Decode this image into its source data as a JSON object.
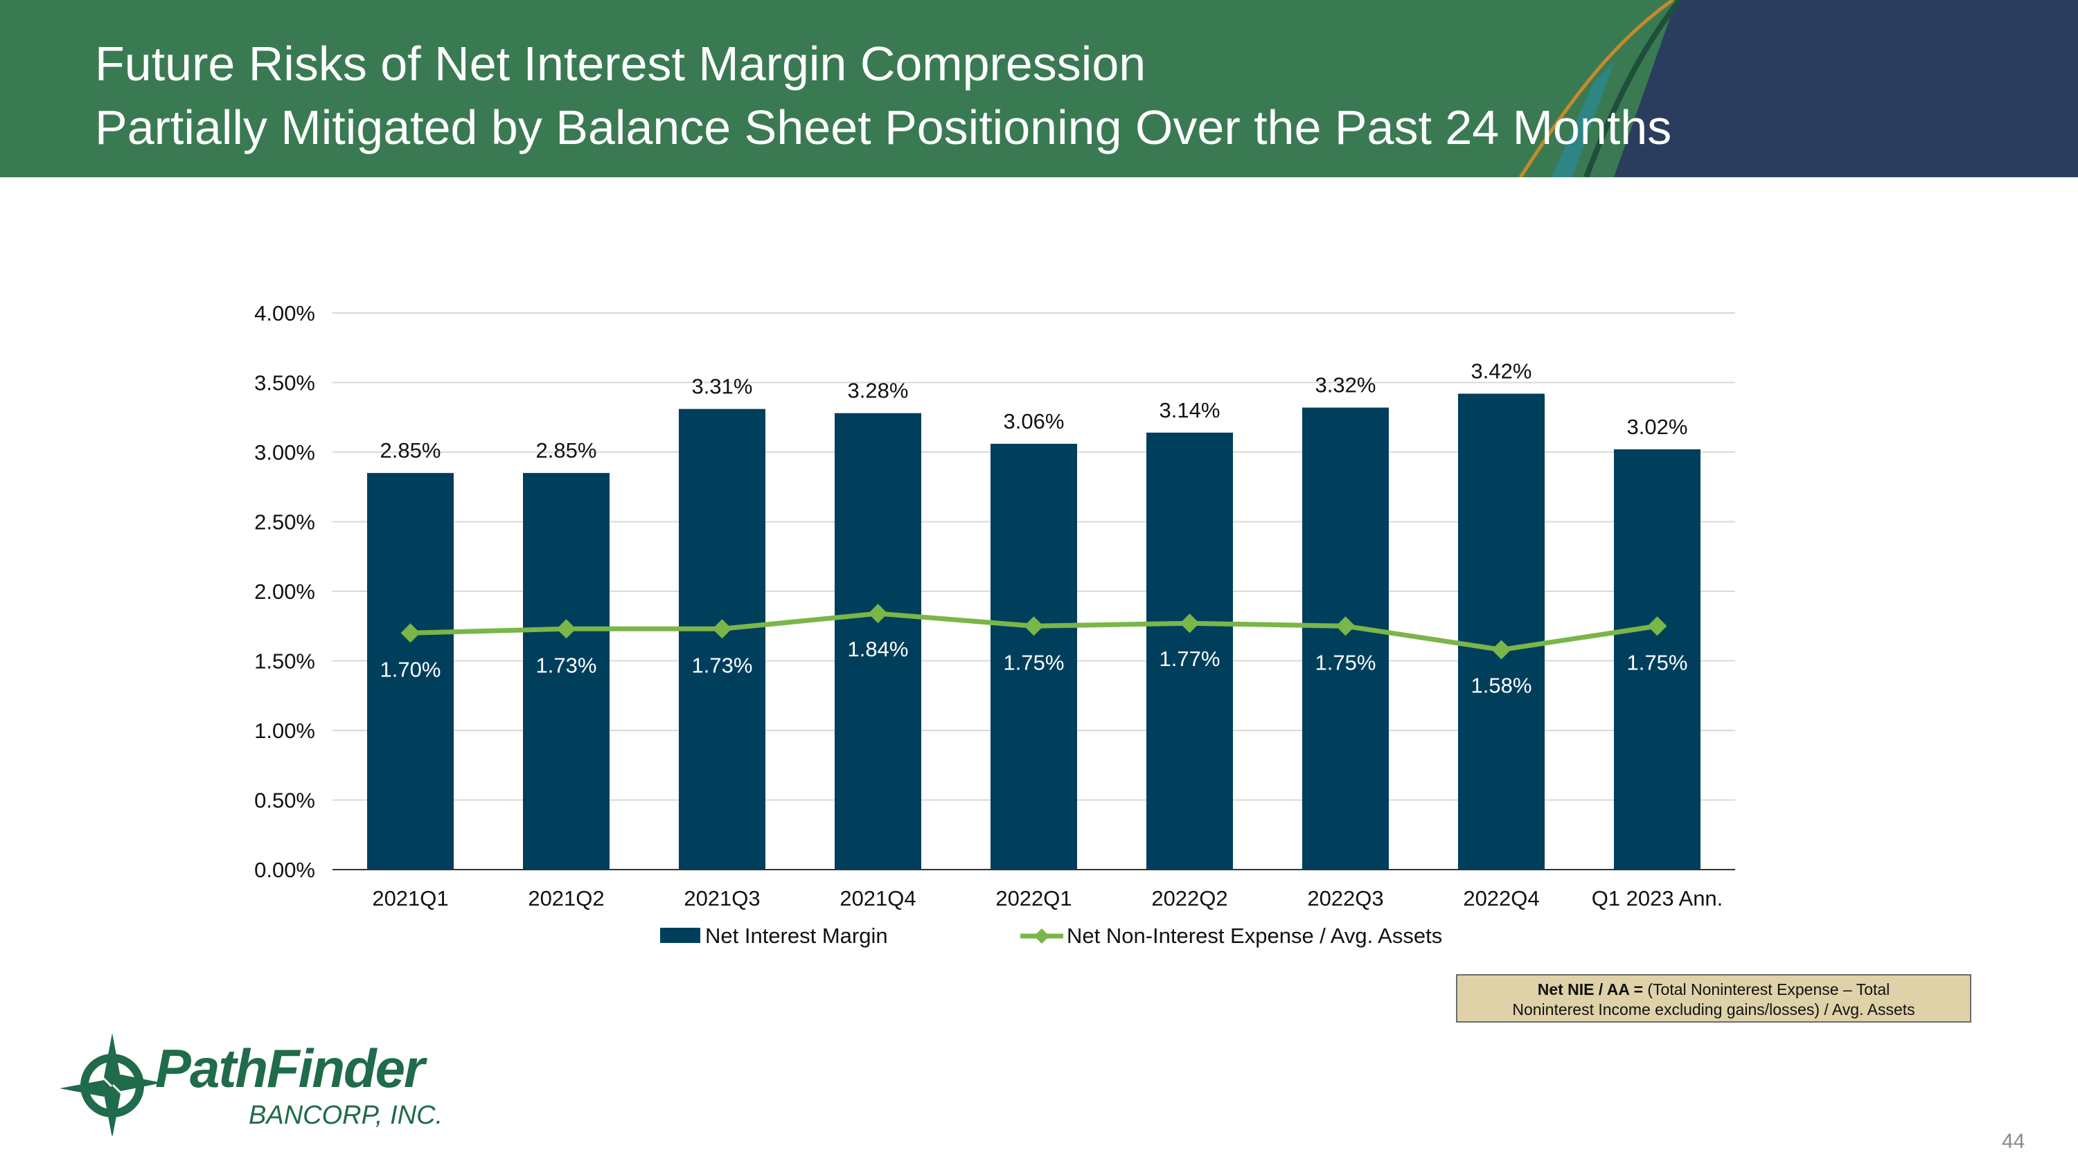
{
  "header": {
    "title_line1": "Future Risks of Net Interest Margin Compression",
    "title_line2": "Partially Mitigated by Balance Sheet Positioning Over the Past 24 Months"
  },
  "colors": {
    "header_green": "#3a7a52",
    "header_navy": "#2b3d5e",
    "bar_navy": "#003f5c",
    "line_green": "#7ab648",
    "note_bg": "#dfd2a8"
  },
  "chart_data": {
    "type": "bar",
    "title": "",
    "xlabel": "",
    "ylabel": "",
    "ylim": [
      0,
      4
    ],
    "yticks": [
      "0.00%",
      "0.50%",
      "1.00%",
      "1.50%",
      "2.00%",
      "2.50%",
      "3.00%",
      "3.50%",
      "4.00%"
    ],
    "ytick_values": [
      0,
      0.5,
      1,
      1.5,
      2,
      2.5,
      3,
      3.5,
      4
    ],
    "categories": [
      "2021Q1",
      "2021Q2",
      "2021Q3",
      "2021Q4",
      "2022Q1",
      "2022Q2",
      "2022Q3",
      "2022Q4",
      "Q1 2023 Ann."
    ],
    "series": [
      {
        "name": "Net Interest Margin",
        "kind": "bar",
        "values": [
          2.85,
          2.85,
          3.31,
          3.28,
          3.06,
          3.14,
          3.32,
          3.42,
          3.02
        ],
        "labels": [
          "2.85%",
          "2.85%",
          "3.31%",
          "3.28%",
          "3.06%",
          "3.14%",
          "3.32%",
          "3.42%",
          "3.02%"
        ]
      },
      {
        "name": "Net Non-Interest Expense / Avg. Assets",
        "kind": "line",
        "values": [
          1.7,
          1.73,
          1.73,
          1.84,
          1.75,
          1.77,
          1.75,
          1.58,
          1.75
        ],
        "labels": [
          "1.70%",
          "1.73%",
          "1.73%",
          "1.84%",
          "1.75%",
          "1.77%",
          "1.75%",
          "1.58%",
          "1.75%"
        ]
      }
    ],
    "legend_position": "bottom-center"
  },
  "note": {
    "bold": "Net NIE / AA =",
    "text_line1": "(Total Noninterest Expense – Total",
    "text_line2": "Noninterest Income excluding gains/losses) / Avg. Assets"
  },
  "logo": {
    "name": "PathFinder",
    "sub": "BANCORP, INC."
  },
  "page_number": "44"
}
